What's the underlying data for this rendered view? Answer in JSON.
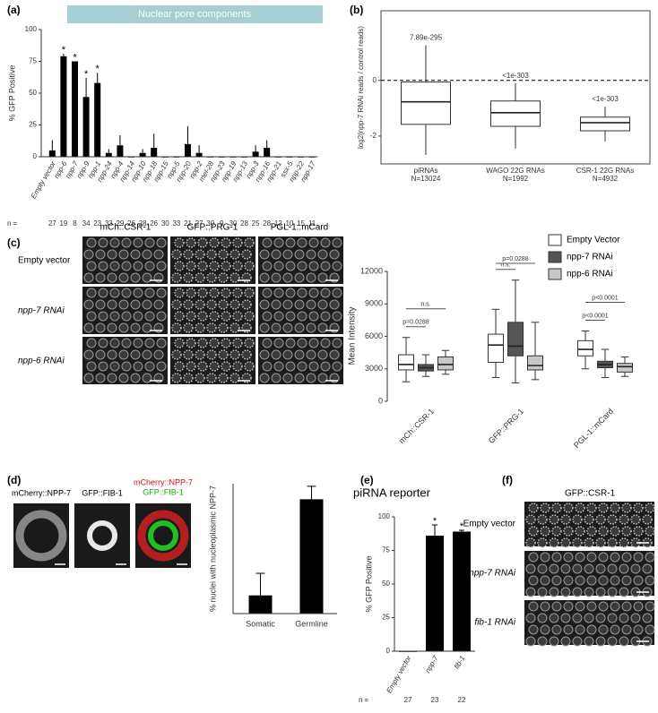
{
  "chart_data": [
    {
      "type": "bar",
      "panel": "(a)",
      "banner": "Nuclear pore components",
      "categories": [
        "Empty vector",
        "npp-6",
        "npp-7",
        "npp-9",
        "npp-1",
        "npp-24",
        "npp-4",
        "npp-14",
        "npp-10",
        "npp-18",
        "npp-15",
        "npp-5",
        "npp-20",
        "npp-2",
        "mel-28",
        "npp-23",
        "npp-19",
        "npp-13",
        "npp-3",
        "npp-16",
        "npp-21",
        "ssx-5",
        "npp-22",
        "npp-17"
      ],
      "values": [
        5,
        79,
        75,
        47,
        58,
        3,
        9,
        0,
        3,
        7,
        0,
        0,
        10,
        3,
        0,
        0,
        0,
        0,
        4,
        7,
        0,
        0,
        0,
        0
      ],
      "errors": [
        8,
        2,
        0,
        15,
        8,
        3,
        8,
        0,
        3,
        11,
        0,
        0,
        14,
        6,
        0,
        0,
        0,
        0,
        5,
        6,
        0,
        0,
        0,
        0
      ],
      "significance": [
        null,
        "*",
        "*",
        "*",
        "*",
        null,
        null,
        null,
        null,
        null,
        null,
        null,
        null,
        null,
        null,
        null,
        null,
        null,
        null,
        null,
        null,
        null,
        null,
        null
      ],
      "ylabel": "% GFP Positive",
      "ylim": [
        0,
        100
      ],
      "yticks": [
        0,
        25,
        50,
        75,
        100
      ],
      "n_label": "n =",
      "n": [
        27,
        19,
        8,
        34,
        23,
        33,
        29,
        26,
        28,
        26,
        30,
        33,
        21,
        27,
        30,
        9,
        30,
        28,
        25,
        28,
        12,
        10,
        15,
        11
      ],
      "color": "#000000"
    },
    {
      "type": "box",
      "panel": "(b)",
      "categories": [
        "piRNAs",
        "WAGO 22G RNAs",
        "CSR-1 22G RNAs"
      ],
      "counts": [
        "N=13024",
        "N=1992",
        "N=4932"
      ],
      "boxes": [
        {
          "min": -2.68,
          "q1": -1.58,
          "median": -0.77,
          "q3": -0.06,
          "max": 1.26
        },
        {
          "min": -2.45,
          "q1": -1.65,
          "median": -1.16,
          "q3": -0.74,
          "max": -0.1
        },
        {
          "min": -2.19,
          "q1": -1.81,
          "median": -1.52,
          "q3": -1.32,
          "max": -0.94
        }
      ],
      "annotations": [
        "7.89e-295",
        "<1e-303",
        "<1e-303"
      ],
      "ylabel": "log2(npp-7 RNAi reads / control reads)",
      "ylim": [
        -3,
        2.5
      ],
      "yticks": [
        -2,
        0
      ],
      "reference_line": 0
    },
    {
      "type": "grouped_box",
      "categories": [
        "mCh::CSR-1",
        "GFP::PRG-1",
        "PGL-1::mCard"
      ],
      "series": [
        {
          "name": "Empty Vector",
          "color": "#ffffff",
          "boxes": [
            {
              "min": 1800,
              "q1": 2900,
              "median": 3400,
              "q3": 4300,
              "max": 5900
            },
            {
              "min": 2200,
              "q1": 3600,
              "median": 5200,
              "q3": 6200,
              "max": 8500
            },
            {
              "min": 3000,
              "q1": 4200,
              "median": 4800,
              "q3": 5600,
              "max": 6500
            }
          ]
        },
        {
          "name": "npp-7 RNAi",
          "color": "#555555",
          "boxes": [
            {
              "min": 2300,
              "q1": 2800,
              "median": 3100,
              "q3": 3400,
              "max": 4300
            },
            {
              "min": 1700,
              "q1": 4200,
              "median": 5100,
              "q3": 7300,
              "max": 11200
            },
            {
              "min": 2200,
              "q1": 3100,
              "median": 3400,
              "q3": 3700,
              "max": 4800
            }
          ]
        },
        {
          "name": "npp-6 RNAi",
          "color": "#c8c8c8",
          "boxes": [
            {
              "min": 2500,
              "q1": 2900,
              "median": 3400,
              "q3": 4100,
              "max": 4700
            },
            {
              "min": 2000,
              "q1": 2900,
              "median": 3300,
              "q3": 4200,
              "max": 7300
            },
            {
              "min": 2300,
              "q1": 2700,
              "median": 3200,
              "q3": 3500,
              "max": 4100
            }
          ]
        }
      ],
      "comparisons": [
        {
          "category": 0,
          "series": [
            0,
            1
          ],
          "text": "p=0.0288"
        },
        {
          "category": 0,
          "series": [
            0,
            2
          ],
          "text": "n.s."
        },
        {
          "category": 1,
          "series": [
            0,
            1
          ],
          "text": "n.s."
        },
        {
          "category": 1,
          "series": [
            0,
            2
          ],
          "text": "p=0.0288"
        },
        {
          "category": 2,
          "series": [
            0,
            1
          ],
          "text": "p<0.0001"
        },
        {
          "category": 2,
          "series": [
            0,
            2
          ],
          "text": "p<0.0001"
        }
      ],
      "ylabel": "Mean Intensity",
      "ylim": [
        0,
        12500
      ],
      "yticks": [
        0,
        3000,
        6000,
        9000,
        12000
      ]
    },
    {
      "type": "bar",
      "categories": [
        "Somatic",
        "Germline"
      ],
      "values": [
        14,
        88
      ],
      "errors": [
        17,
        10
      ],
      "ylabel": "% nuclei with nucleoplasmic NPP-7",
      "ylim": [
        0,
        100
      ],
      "color": "#000000"
    },
    {
      "type": "bar",
      "panel": "(e)",
      "title": "piRNA reporter",
      "categories": [
        "Empty vector",
        "npp-7",
        "fib-1"
      ],
      "values": [
        0,
        86,
        89
      ],
      "errors": [
        0,
        8,
        1
      ],
      "significance": [
        null,
        "*",
        "*"
      ],
      "ylabel": "% GFP Positive",
      "ylim": [
        0,
        100
      ],
      "yticks": [
        0,
        25,
        50,
        75,
        100
      ],
      "n_label": "n =",
      "n": [
        27,
        23,
        22
      ],
      "color": "#000000"
    }
  ],
  "image_panels": [
    {
      "panel": "(c)",
      "columns": [
        "mCh::CSR-1",
        "GFP::PRG-1",
        "PGL-1::mCard"
      ],
      "rows": [
        "Empty vector",
        "npp-7 RNAi",
        "npp-6 RNAi"
      ]
    },
    {
      "panel": "(d)",
      "columns": [
        "mCherry::NPP-7",
        "GFP::FIB-1"
      ],
      "merge": [
        "mCherry::NPP-7",
        "GFP::FIB-1"
      ]
    },
    {
      "panel": "(f)",
      "columns": [
        "GFP::CSR-1"
      ],
      "rows": [
        "Empty vector",
        "npp-7 RNAi",
        "fib-1 RNAi"
      ]
    }
  ]
}
